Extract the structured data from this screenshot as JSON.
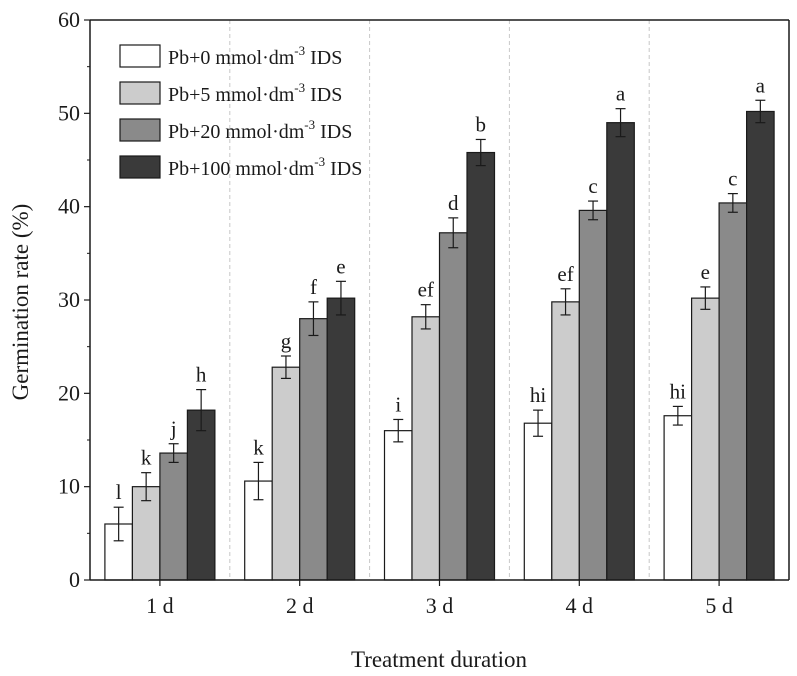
{
  "chart_data": {
    "type": "bar",
    "xlabel": "Treatment duration",
    "ylabel": "Germination rate (%)",
    "ylim": [
      0,
      60
    ],
    "yticks": [
      0,
      10,
      20,
      30,
      40,
      50,
      60
    ],
    "categories": [
      "1 d",
      "2 d",
      "3 d",
      "4 d",
      "5 d"
    ],
    "legend_position": "top-left",
    "series": [
      {
        "name": "Pb+0 mmol·dm-3 IDS",
        "legend": {
          "prefix": "Pb+0 mmol·dm",
          "sup": "-3",
          "suffix": " IDS"
        },
        "color": "#ffffff",
        "values": [
          6.0,
          10.6,
          16.0,
          16.8,
          17.6
        ],
        "errors": [
          1.8,
          2.0,
          1.2,
          1.4,
          1.0
        ],
        "labels": [
          "l",
          "k",
          "i",
          "hi",
          "hi"
        ]
      },
      {
        "name": "Pb+5 mmol·dm-3 IDS",
        "legend": {
          "prefix": "Pb+5 mmol·dm",
          "sup": "-3",
          "suffix": " IDS"
        },
        "color": "#cccccc",
        "values": [
          10.0,
          22.8,
          28.2,
          29.8,
          30.2
        ],
        "errors": [
          1.5,
          1.2,
          1.3,
          1.4,
          1.2
        ],
        "labels": [
          "k",
          "g",
          "ef",
          "ef",
          "e"
        ]
      },
      {
        "name": "Pb+20 mmol·dm-3 IDS",
        "legend": {
          "prefix": "Pb+20 mmol·dm",
          "sup": "-3",
          "suffix": " IDS"
        },
        "color": "#8a8a8a",
        "values": [
          13.6,
          28.0,
          37.2,
          39.6,
          40.4
        ],
        "errors": [
          1.0,
          1.8,
          1.6,
          1.0,
          1.0
        ],
        "labels": [
          "j",
          "f",
          "d",
          "c",
          "c"
        ]
      },
      {
        "name": "Pb+100 mmol·dm-3 IDS",
        "legend": {
          "prefix": "Pb+100 mmol·dm",
          "sup": "-3",
          "suffix": " IDS"
        },
        "color": "#3a3a3a",
        "values": [
          18.2,
          30.2,
          45.8,
          49.0,
          50.2
        ],
        "errors": [
          2.2,
          1.8,
          1.4,
          1.5,
          1.2
        ],
        "labels": [
          "h",
          "e",
          "b",
          "a",
          "a"
        ]
      }
    ]
  }
}
